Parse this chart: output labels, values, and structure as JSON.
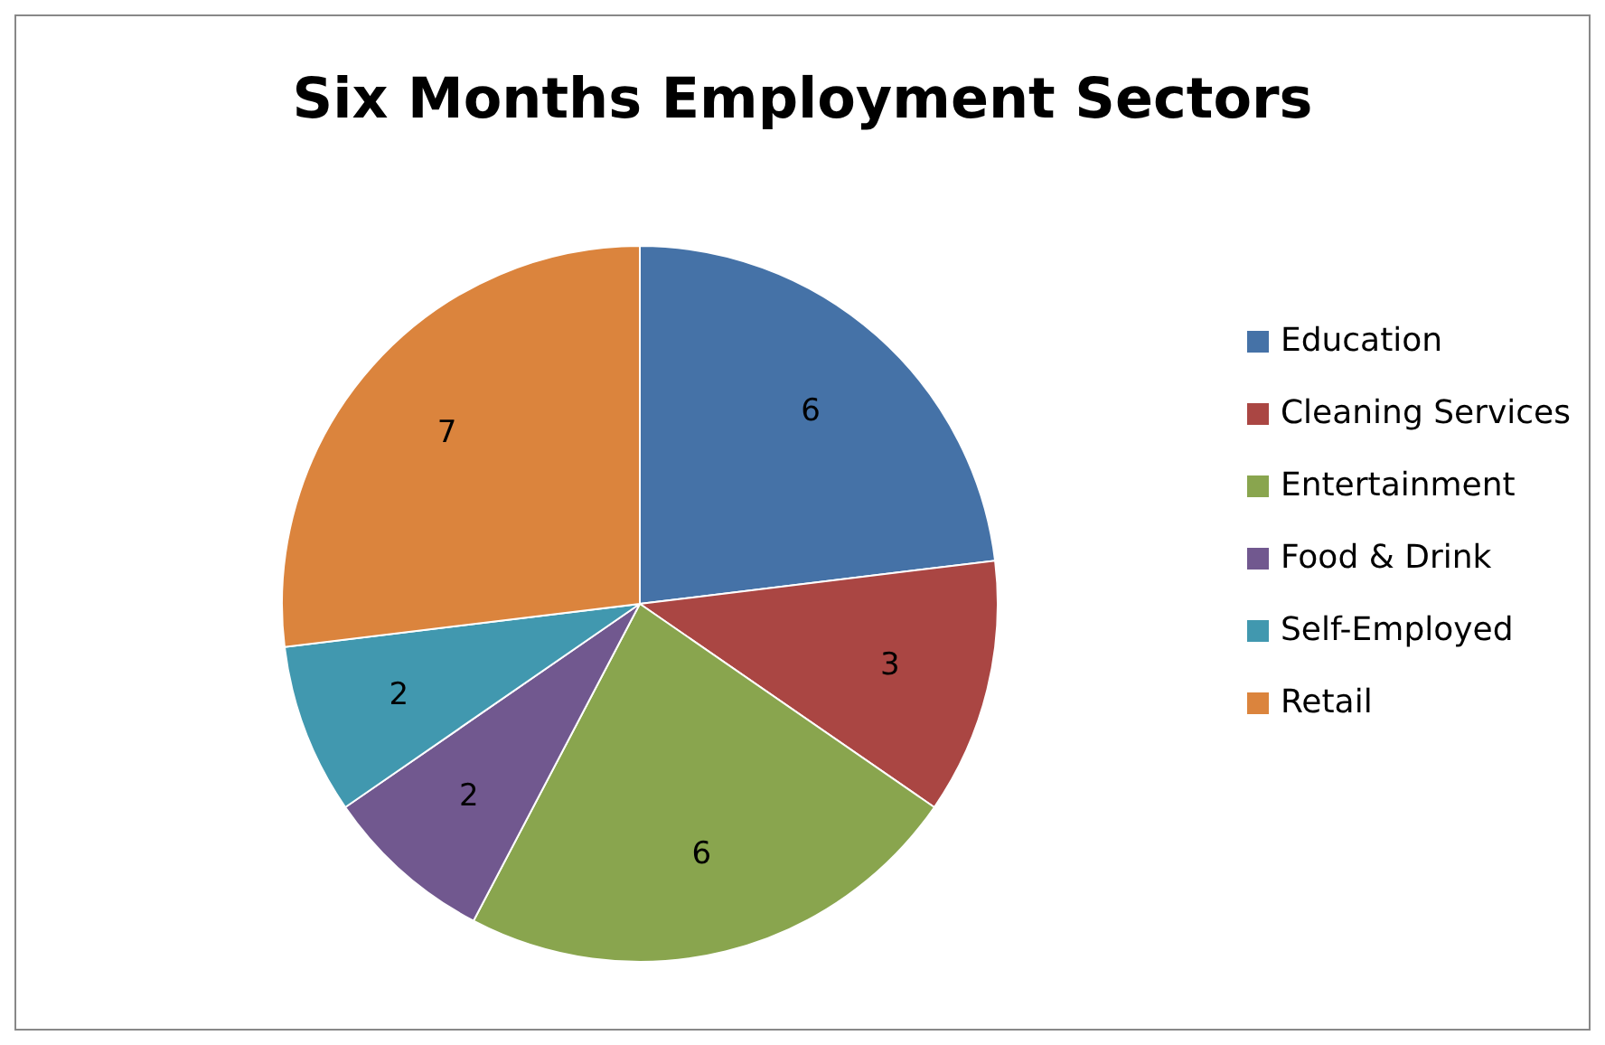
{
  "chart_data": {
    "type": "pie",
    "title": "Six Months Employment Sectors",
    "categories": [
      "Education",
      "Cleaning Services",
      "Entertainment",
      "Food & Drink",
      "Self-Employed",
      "Retail"
    ],
    "values": [
      6,
      3,
      6,
      2,
      2,
      7
    ],
    "colors": [
      "#4572a7",
      "#aa4643",
      "#89a54e",
      "#71588f",
      "#4198af",
      "#db843d"
    ],
    "data_labels": true,
    "legend": "right"
  }
}
